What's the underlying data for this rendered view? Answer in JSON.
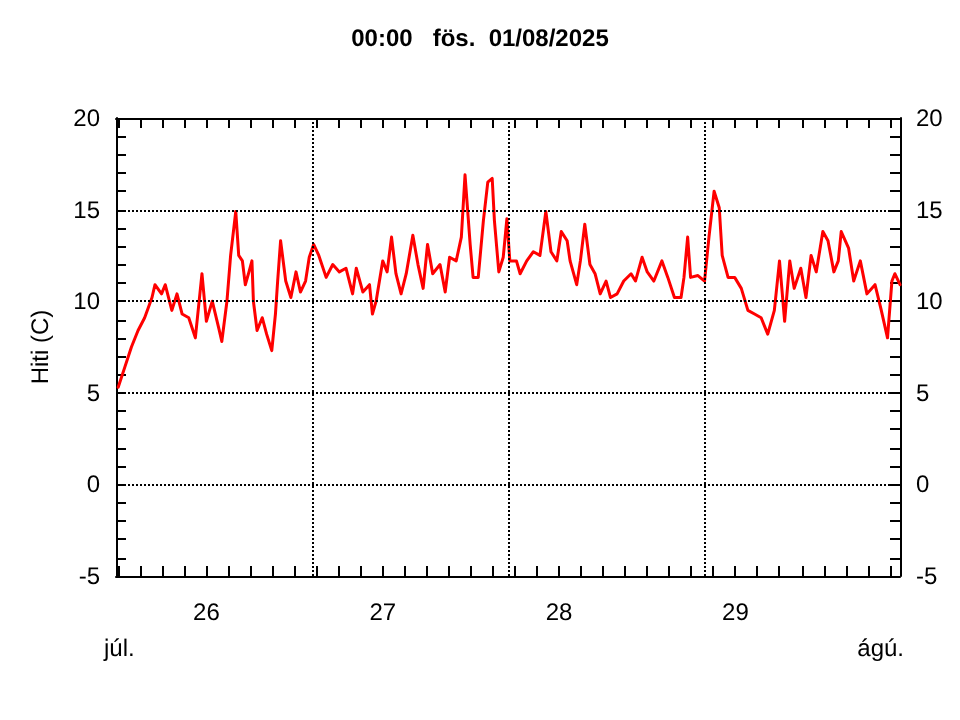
{
  "chart_data": {
    "type": "line",
    "title": "00:00   fös.  01/08/2025",
    "ylabel": "Hiti (C)",
    "annotations": [
      "júl.",
      "ágú."
    ],
    "xlim": [
      "2025-07-25T23:42",
      "2025-07-30T10:24"
    ],
    "xticks": [
      {
        "value": "2025-07-26T00:00",
        "label": null
      },
      {
        "value": "2025-07-26T03:00",
        "label": null
      },
      {
        "value": "2025-07-26T06:00",
        "label": null
      },
      {
        "value": "2025-07-26T09:00",
        "label": null
      },
      {
        "value": "2025-07-26T12:00",
        "label": "26"
      },
      {
        "value": "2025-07-26T15:00",
        "label": null
      },
      {
        "value": "2025-07-26T18:00",
        "label": null
      },
      {
        "value": "2025-07-26T21:00",
        "label": null
      },
      {
        "value": "2025-07-27T00:00",
        "label": null
      },
      {
        "value": "2025-07-27T03:00",
        "label": null
      },
      {
        "value": "2025-07-27T06:00",
        "label": null
      },
      {
        "value": "2025-07-27T09:00",
        "label": null
      },
      {
        "value": "2025-07-27T12:00",
        "label": "27"
      },
      {
        "value": "2025-07-27T15:00",
        "label": null
      },
      {
        "value": "2025-07-27T18:00",
        "label": null
      },
      {
        "value": "2025-07-27T21:00",
        "label": null
      },
      {
        "value": "2025-07-28T00:00",
        "label": null
      },
      {
        "value": "2025-07-28T03:00",
        "label": null
      },
      {
        "value": "2025-07-28T06:00",
        "label": null
      },
      {
        "value": "2025-07-28T09:00",
        "label": null
      },
      {
        "value": "2025-07-28T12:00",
        "label": "28"
      },
      {
        "value": "2025-07-28T15:00",
        "label": null
      },
      {
        "value": "2025-07-28T18:00",
        "label": null
      },
      {
        "value": "2025-07-28T21:00",
        "label": null
      },
      {
        "value": "2025-07-29T00:00",
        "label": null
      },
      {
        "value": "2025-07-29T03:00",
        "label": null
      },
      {
        "value": "2025-07-29T06:00",
        "label": null
      },
      {
        "value": "2025-07-29T09:00",
        "label": null
      },
      {
        "value": "2025-07-29T12:00",
        "label": "29"
      },
      {
        "value": "2025-07-29T15:00",
        "label": null
      },
      {
        "value": "2025-07-29T18:00",
        "label": null
      },
      {
        "value": "2025-07-29T21:00",
        "label": null
      },
      {
        "value": "2025-07-30T00:00",
        "label": null
      },
      {
        "value": "2025-07-30T03:00",
        "label": null
      },
      {
        "value": "2025-07-30T06:00",
        "label": null
      },
      {
        "value": "2025-07-30T09:00",
        "label": null
      }
    ],
    "ylim": [
      -5,
      20
    ],
    "yticks": [
      -5,
      {
        "value": -4,
        "label": null
      },
      {
        "value": -3,
        "label": null
      },
      {
        "value": -2,
        "label": null
      },
      {
        "value": -1,
        "label": null
      },
      0,
      {
        "value": 1,
        "label": null
      },
      {
        "value": 2,
        "label": null
      },
      {
        "value": 3,
        "label": null
      },
      {
        "value": 4,
        "label": null
      },
      5,
      {
        "value": 6,
        "label": null
      },
      {
        "value": 7,
        "label": null
      },
      {
        "value": 8,
        "label": null
      },
      {
        "value": 9,
        "label": null
      },
      10,
      {
        "value": 11,
        "label": null
      },
      {
        "value": 12,
        "label": null
      },
      {
        "value": 13,
        "label": null
      },
      {
        "value": 14,
        "label": null
      },
      15,
      {
        "value": 16,
        "label": null
      },
      {
        "value": 17,
        "label": null
      },
      {
        "value": 18,
        "label": null
      },
      {
        "value": 19,
        "label": null
      },
      20
    ],
    "y2lim": [
      -5,
      20
    ],
    "y2ticks": [
      -5,
      {
        "value": -4,
        "label": null
      },
      {
        "value": -3,
        "label": null
      },
      {
        "value": -2,
        "label": null
      },
      {
        "value": -1,
        "label": null
      },
      0,
      {
        "value": 1,
        "label": null
      },
      {
        "value": 2,
        "label": null
      },
      {
        "value": 3,
        "label": null
      },
      {
        "value": 4,
        "label": null
      },
      5,
      {
        "value": 6,
        "label": null
      },
      {
        "value": 7,
        "label": null
      },
      {
        "value": 8,
        "label": null
      },
      {
        "value": 9,
        "label": null
      },
      10,
      {
        "value": 11,
        "label": null
      },
      {
        "value": 12,
        "label": null
      },
      {
        "value": 13,
        "label": null
      },
      {
        "value": 14,
        "label": null
      },
      15,
      {
        "value": 16,
        "label": null
      },
      {
        "value": 17,
        "label": null
      },
      {
        "value": 18,
        "label": null
      },
      {
        "value": 19,
        "label": null
      },
      20
    ],
    "grid": "y",
    "marker": "none",
    "line_style": "solid",
    "ref_lines": [
      {
        "axis": "x",
        "value": "2025-07-27T02:24",
        "label": null,
        "color": "#000000",
        "line_style": "dotted"
      },
      {
        "axis": "x",
        "value": "2025-07-28T05:06",
        "label": null,
        "color": "#000000",
        "line_style": "dotted"
      },
      {
        "axis": "x",
        "value": "2025-07-29T07:42",
        "label": null,
        "color": "#000000",
        "line_style": "dotted"
      }
    ],
    "series": [
      {
        "color": "#ff0000",
        "x": [
          "2025-07-26T00:00",
          "2025-07-26T00:54",
          "2025-07-26T01:48",
          "2025-07-26T02:42",
          "2025-07-26T03:36",
          "2025-07-26T04:36",
          "2025-07-26T05:00",
          "2025-07-26T05:54",
          "2025-07-26T06:24",
          "2025-07-26T07:18",
          "2025-07-26T08:00",
          "2025-07-26T08:42",
          "2025-07-26T09:36",
          "2025-07-26T10:30",
          "2025-07-26T11:24",
          "2025-07-26T12:00",
          "2025-07-26T12:48",
          "2025-07-26T13:42",
          "2025-07-26T14:06",
          "2025-07-26T14:48",
          "2025-07-26T15:18",
          "2025-07-26T16:00",
          "2025-07-26T16:24",
          "2025-07-26T16:54",
          "2025-07-26T17:18",
          "2025-07-26T17:48",
          "2025-07-26T18:12",
          "2025-07-26T18:24",
          "2025-07-26T18:54",
          "2025-07-26T19:36",
          "2025-07-26T20:12",
          "2025-07-26T20:54",
          "2025-07-26T21:24",
          "2025-07-26T21:42",
          "2025-07-26T22:06",
          "2025-07-26T22:48",
          "2025-07-26T23:30",
          "2025-07-27T00:12",
          "2025-07-27T00:48",
          "2025-07-27T01:30",
          "2025-07-27T02:00",
          "2025-07-27T02:36",
          "2025-07-27T03:18",
          "2025-07-27T04:18",
          "2025-07-27T05:12",
          "2025-07-27T06:06",
          "2025-07-27T07:00",
          "2025-07-27T07:54",
          "2025-07-27T08:24",
          "2025-07-27T09:18",
          "2025-07-27T10:12",
          "2025-07-27T10:36",
          "2025-07-27T11:06",
          "2025-07-27T12:00",
          "2025-07-27T12:36",
          "2025-07-27T13:12",
          "2025-07-27T13:48",
          "2025-07-27T14:30",
          "2025-07-27T15:12",
          "2025-07-27T16:06",
          "2025-07-27T16:48",
          "2025-07-27T17:30",
          "2025-07-27T18:06",
          "2025-07-27T18:48",
          "2025-07-27T19:48",
          "2025-07-27T20:30",
          "2025-07-27T21:06",
          "2025-07-27T22:00",
          "2025-07-27T22:42",
          "2025-07-27T23:12",
          "2025-07-27T23:54",
          "2025-07-28T00:18",
          "2025-07-28T01:00",
          "2025-07-28T01:42",
          "2025-07-28T02:18",
          "2025-07-28T02:54",
          "2025-07-28T03:12",
          "2025-07-28T03:48",
          "2025-07-28T04:24",
          "2025-07-28T04:54",
          "2025-07-28T05:18",
          "2025-07-28T06:12",
          "2025-07-28T06:42",
          "2025-07-28T07:36",
          "2025-07-28T08:30",
          "2025-07-28T09:24",
          "2025-07-28T10:12",
          "2025-07-28T10:54",
          "2025-07-28T11:42",
          "2025-07-28T12:18",
          "2025-07-28T13:06",
          "2025-07-28T13:30",
          "2025-07-28T14:24",
          "2025-07-28T14:54",
          "2025-07-28T15:30",
          "2025-07-28T16:12",
          "2025-07-28T16:54",
          "2025-07-28T17:36",
          "2025-07-28T18:24",
          "2025-07-28T19:00",
          "2025-07-28T19:54",
          "2025-07-28T20:48",
          "2025-07-28T21:48",
          "2025-07-28T22:24",
          "2025-07-28T23:18",
          "2025-07-29T00:00",
          "2025-07-29T00:54",
          "2025-07-29T02:00",
          "2025-07-29T02:48",
          "2025-07-29T03:42",
          "2025-07-29T04:36",
          "2025-07-29T05:00",
          "2025-07-29T05:30",
          "2025-07-29T05:54",
          "2025-07-29T06:54",
          "2025-07-29T07:48",
          "2025-07-29T08:24",
          "2025-07-29T09:06",
          "2025-07-29T09:48",
          "2025-07-29T10:12",
          "2025-07-29T11:00",
          "2025-07-29T11:54",
          "2025-07-29T12:48",
          "2025-07-29T13:42",
          "2025-07-29T14:36",
          "2025-07-29T15:30",
          "2025-07-29T16:24",
          "2025-07-29T17:18",
          "2025-07-29T18:00",
          "2025-07-29T18:42",
          "2025-07-29T19:24",
          "2025-07-29T20:00",
          "2025-07-29T20:54",
          "2025-07-29T21:36",
          "2025-07-29T22:18",
          "2025-07-29T23:00",
          "2025-07-29T23:54",
          "2025-07-30T00:36",
          "2025-07-30T01:24",
          "2025-07-30T02:00",
          "2025-07-30T02:24",
          "2025-07-30T03:24",
          "2025-07-30T04:06",
          "2025-07-30T05:00",
          "2025-07-30T05:54",
          "2025-07-30T07:00",
          "2025-07-30T07:48",
          "2025-07-30T08:42",
          "2025-07-30T09:18",
          "2025-07-30T09:42",
          "2025-07-30T10:24"
        ],
        "values": [
          5.3,
          6.4,
          7.5,
          8.4,
          9.1,
          10.2,
          10.9,
          10.4,
          10.9,
          9.5,
          10.4,
          9.3,
          9.1,
          8.0,
          11.5,
          8.9,
          10.0,
          8.5,
          7.8,
          10.0,
          12.5,
          14.9,
          12.5,
          12.2,
          10.9,
          11.6,
          12.2,
          10.0,
          8.4,
          9.1,
          8.2,
          7.3,
          9.3,
          11.1,
          13.3,
          11.1,
          10.2,
          11.6,
          10.5,
          11.1,
          12.4,
          13.1,
          12.5,
          11.3,
          12.0,
          11.6,
          11.8,
          10.4,
          11.8,
          10.5,
          10.9,
          9.3,
          10.0,
          12.2,
          11.6,
          13.5,
          11.5,
          10.4,
          11.5,
          13.6,
          12.0,
          10.7,
          13.1,
          11.5,
          12.0,
          10.5,
          12.4,
          12.2,
          13.5,
          16.9,
          13.1,
          11.3,
          11.3,
          14.4,
          16.5,
          16.7,
          14.4,
          11.6,
          12.4,
          14.5,
          12.2,
          12.2,
          11.5,
          12.2,
          12.7,
          12.5,
          14.9,
          12.7,
          12.2,
          13.8,
          13.3,
          12.2,
          10.9,
          12.2,
          14.2,
          12.0,
          11.5,
          10.4,
          11.1,
          10.2,
          10.4,
          11.1,
          11.5,
          11.1,
          12.4,
          11.6,
          11.1,
          12.2,
          11.3,
          10.2,
          10.2,
          11.3,
          13.5,
          11.3,
          11.4,
          11.1,
          13.5,
          16.0,
          15.1,
          12.5,
          11.3,
          11.3,
          10.7,
          9.5,
          9.3,
          9.1,
          8.2,
          9.5,
          12.2,
          8.9,
          12.2,
          10.7,
          11.8,
          10.2,
          12.5,
          11.6,
          13.8,
          13.3,
          11.6,
          12.2,
          13.8,
          12.9,
          11.1,
          12.2,
          10.4,
          10.9,
          9.6,
          8.0,
          11.1,
          11.5,
          10.9
        ]
      }
    ]
  }
}
